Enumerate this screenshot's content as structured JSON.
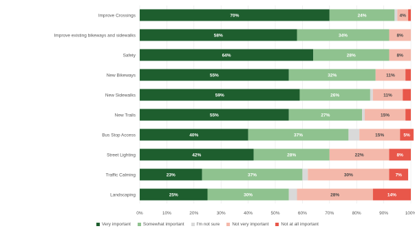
{
  "chart_data": {
    "type": "bar",
    "orientation": "horizontal",
    "stacked": true,
    "categories": [
      "Improve Crossings",
      "Improve existing bikeways and sidewalks",
      "Safety",
      "New Bikeways",
      "New Sidewalks",
      "New Trails",
      "Bus Stop Access",
      "Street Lighting",
      "Traffic Calming",
      "Landscaping"
    ],
    "series": [
      {
        "name": "Very important",
        "color": "#1e5e2e",
        "label_color": "#ffffff",
        "values": [
          70,
          58,
          64,
          55,
          59,
          55,
          40,
          42,
          23,
          25
        ]
      },
      {
        "name": "Somewhat important",
        "color": "#8fc28f",
        "label_color": "#ffffff",
        "values": [
          24,
          34,
          28,
          32,
          26,
          27,
          37,
          28,
          37,
          30
        ]
      },
      {
        "name": "I'm not sure",
        "color": "#d9d9d9",
        "label_color": "#555555",
        "values": [
          1,
          0,
          0,
          0,
          1,
          1,
          4,
          0,
          2,
          3
        ]
      },
      {
        "name": "Not very important",
        "color": "#f4b8aa",
        "label_color": "#444444",
        "values": [
          4,
          8,
          8,
          11,
          11,
          15,
          15,
          22,
          30,
          28
        ]
      },
      {
        "name": "Not at all important",
        "color": "#e8574a",
        "label_color": "#ffffff",
        "values": [
          1,
          0,
          0,
          2,
          3,
          2,
          5,
          8,
          7,
          14
        ]
      }
    ],
    "data_labels": [
      [
        "70%",
        "24%",
        "",
        "4%",
        ""
      ],
      [
        "58%",
        "34%",
        "",
        "8%",
        ""
      ],
      [
        "64%",
        "28%",
        "",
        "8%",
        ""
      ],
      [
        "55%",
        "32%",
        "",
        "11%",
        ""
      ],
      [
        "59%",
        "26%",
        "",
        "11%",
        ""
      ],
      [
        "55%",
        "27%",
        "",
        "15%",
        ""
      ],
      [
        "40%",
        "37%",
        "",
        "15%",
        "5%"
      ],
      [
        "42%",
        "28%",
        "",
        "22%",
        "8%"
      ],
      [
        "23%",
        "37%",
        "",
        "30%",
        "7%"
      ],
      [
        "25%",
        "30%",
        "",
        "28%",
        "14%"
      ]
    ],
    "x_ticks": [
      "0%",
      "10%",
      "20%",
      "30%",
      "40%",
      "50%",
      "60%",
      "70%",
      "80%",
      "90%",
      "100%"
    ],
    "xlim": [
      0,
      100
    ],
    "title": "",
    "xlabel": "",
    "ylabel": "",
    "grid": true,
    "legend_position": "bottom"
  }
}
